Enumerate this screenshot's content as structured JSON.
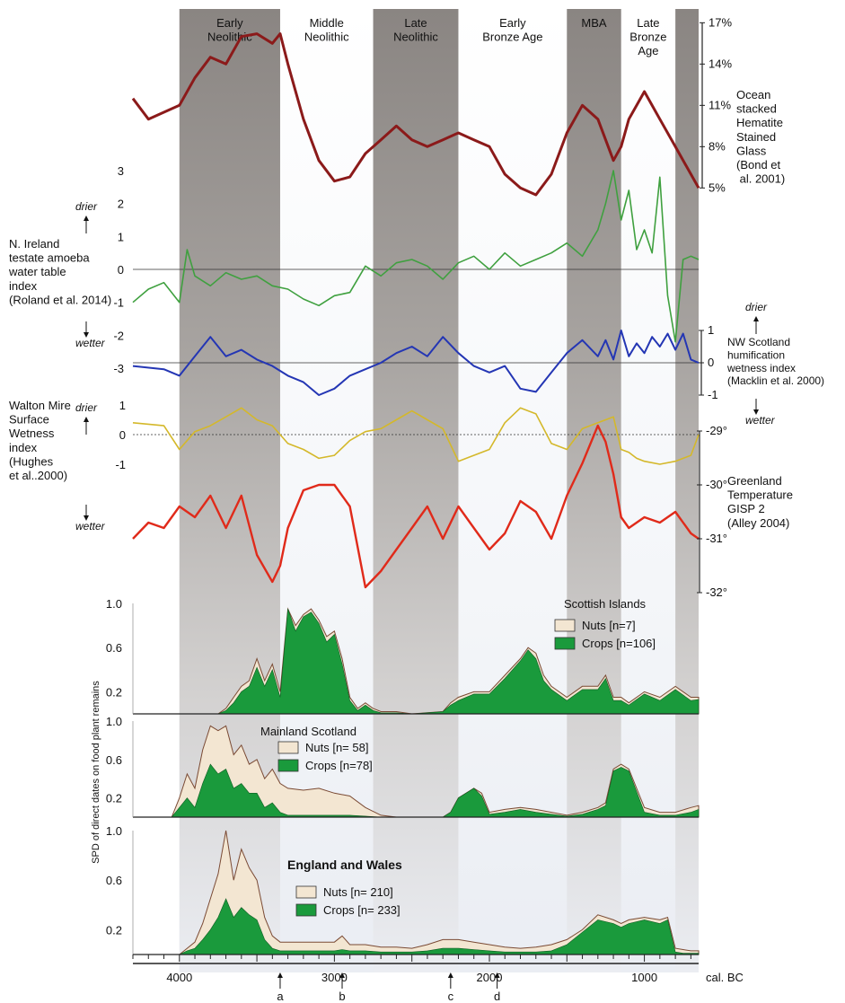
{
  "periods": [
    {
      "label": "Early\nNeolithic",
      "from": 4000,
      "to": 3350,
      "shaded": true
    },
    {
      "label": "Middle\nNeolithic",
      "from": 3350,
      "to": 2750,
      "shaded": false
    },
    {
      "label": "Late\nNeolithic",
      "from": 2750,
      "to": 2200,
      "shaded": true
    },
    {
      "label": "Early\nBronze Age",
      "from": 2200,
      "to": 1500,
      "shaded": false
    },
    {
      "label": "MBA",
      "from": 1500,
      "to": 1150,
      "shaded": true
    },
    {
      "label": "Late\nBronze\nAge",
      "from": 1150,
      "to": 800,
      "shaded": false
    },
    {
      "label": "",
      "from": 800,
      "to": 650,
      "shaded": true
    }
  ],
  "x_axis": {
    "unit": "cal. BC",
    "ticks": [
      4000,
      3000,
      2000,
      1000
    ],
    "markers": [
      {
        "label": "a",
        "x": 3350
      },
      {
        "label": "b",
        "x": 2950
      },
      {
        "label": "c",
        "x": 2250
      },
      {
        "label": "d",
        "x": 1950
      }
    ]
  },
  "colors": {
    "shade": "#8f8a86",
    "ocean": "#8b1a1a",
    "nireland": "#3fa03f",
    "nwscot": "#2436b4",
    "walton": "#d4b82a",
    "greenland": "#e02a1a",
    "crops": "#1a9a3c",
    "nuts": "#f3e6d2",
    "nuts_line": "#7a4a34"
  },
  "chart_data": [
    {
      "type": "line",
      "title": "",
      "series": [
        {
          "name": "Ocean stacked Hematite Stained Glass (Bond et al. 2001)",
          "x": [
            4300,
            4200,
            4100,
            4000,
            3900,
            3800,
            3700,
            3600,
            3500,
            3400,
            3350,
            3300,
            3200,
            3100,
            3000,
            2900,
            2800,
            2700,
            2600,
            2500,
            2400,
            2300,
            2200,
            2100,
            2000,
            1900,
            1800,
            1700,
            1600,
            1500,
            1400,
            1300,
            1200,
            1150,
            1100,
            1000,
            900,
            800,
            700,
            650
          ],
          "y": [
            11.5,
            10,
            10.5,
            11,
            13,
            14.5,
            14,
            16,
            16.2,
            15.5,
            16.2,
            14,
            10,
            7,
            5.5,
            5.8,
            7.5,
            8.5,
            9.5,
            8.5,
            8,
            8.5,
            9,
            8.5,
            8,
            6,
            5,
            4.5,
            6,
            9,
            11,
            10,
            7,
            8,
            10,
            12,
            10,
            8,
            6,
            5
          ]
        }
      ],
      "y_ticks": [
        "17%",
        "14%",
        "11%",
        "8%",
        "5%"
      ],
      "label": "Ocean\nstacked\nHematite\nStained\nGlass\n(Bond et\n al. 2001)"
    },
    {
      "type": "line",
      "series": [
        {
          "name": "N. Ireland testate amoeba water table index (Roland et al. 2014)",
          "x": [
            4300,
            4200,
            4100,
            4000,
            3950,
            3900,
            3800,
            3700,
            3600,
            3500,
            3400,
            3300,
            3200,
            3100,
            3000,
            2900,
            2800,
            2700,
            2600,
            2500,
            2400,
            2300,
            2200,
            2100,
            2000,
            1900,
            1800,
            1700,
            1600,
            1500,
            1400,
            1300,
            1250,
            1200,
            1150,
            1100,
            1050,
            1000,
            950,
            900,
            850,
            800,
            750,
            700,
            650
          ],
          "y": [
            -1,
            -0.6,
            -0.4,
            -1,
            0.6,
            -0.2,
            -0.5,
            -0.1,
            -0.3,
            -0.2,
            -0.5,
            -0.6,
            -0.9,
            -1.1,
            -0.8,
            -0.7,
            0.1,
            -0.2,
            0.2,
            0.3,
            0.1,
            -0.3,
            0.2,
            0.4,
            0,
            0.5,
            0.1,
            0.3,
            0.5,
            0.8,
            0.4,
            1.2,
            2,
            3,
            1.5,
            2.4,
            0.6,
            1.2,
            0.5,
            2.8,
            -0.8,
            -2.2,
            0.3,
            0.4,
            0.3
          ]
        }
      ],
      "y_ticks": [
        "3",
        "2",
        "1",
        "0",
        "-1",
        "-2",
        "-3"
      ],
      "label": "N. Ireland\ntestate amoeba\nwater table\nindex\n(Roland et al. 2014)"
    },
    {
      "type": "line",
      "series": [
        {
          "name": "NW Scotland humification wetness index (Macklin et al. 2000)",
          "x": [
            4300,
            4100,
            4000,
            3900,
            3800,
            3700,
            3600,
            3500,
            3400,
            3300,
            3200,
            3100,
            3000,
            2900,
            2800,
            2700,
            2600,
            2500,
            2400,
            2300,
            2200,
            2100,
            2000,
            1900,
            1800,
            1700,
            1600,
            1500,
            1400,
            1300,
            1250,
            1200,
            1150,
            1100,
            1050,
            1000,
            950,
            900,
            850,
            800,
            750,
            700,
            650
          ],
          "y": [
            -0.1,
            -0.2,
            -0.4,
            0.2,
            0.8,
            0.2,
            0.4,
            0.1,
            -0.1,
            -0.4,
            -0.6,
            -1,
            -0.8,
            -0.4,
            -0.2,
            0,
            0.3,
            0.5,
            0.2,
            0.8,
            0.3,
            -0.1,
            -0.3,
            -0.1,
            -0.8,
            -0.9,
            -0.3,
            0.3,
            0.7,
            0.2,
            0.7,
            0.1,
            1,
            0.2,
            0.6,
            0.3,
            0.8,
            0.5,
            0.9,
            0.4,
            0.9,
            0.1,
            0
          ]
        }
      ],
      "y_ticks": [
        "1",
        "0",
        "-1"
      ],
      "label": "NW Scotland\nhumification\nwetness index\n(Macklin et al. 2000)"
    },
    {
      "type": "line",
      "series": [
        {
          "name": "Walton Mire Surface Wetness index (Hughes et al. 2000)",
          "x": [
            4300,
            4100,
            4000,
            3900,
            3800,
            3700,
            3600,
            3500,
            3400,
            3300,
            3200,
            3100,
            3000,
            2900,
            2800,
            2700,
            2600,
            2500,
            2400,
            2300,
            2200,
            2100,
            2000,
            1900,
            1800,
            1700,
            1600,
            1500,
            1400,
            1300,
            1200,
            1150,
            1100,
            1050,
            1000,
            900,
            800,
            700,
            650
          ],
          "y": [
            0.4,
            0.3,
            -0.5,
            0.1,
            0.3,
            0.6,
            0.9,
            0.5,
            0.3,
            -0.3,
            -0.5,
            -0.8,
            -0.7,
            -0.2,
            0.1,
            0.2,
            0.5,
            0.8,
            0.5,
            0.2,
            -0.9,
            -0.7,
            -0.5,
            0.4,
            0.9,
            0.7,
            -0.3,
            -0.5,
            0.2,
            0.4,
            0.6,
            -0.5,
            -0.6,
            -0.8,
            -0.9,
            -1,
            -0.9,
            -0.7,
            0
          ]
        }
      ],
      "y_ticks": [
        "1",
        "0",
        "-1"
      ],
      "label": "Walton Mire\nSurface\nWetness\nindex\n(Hughes\net al..2000)"
    },
    {
      "type": "line",
      "series": [
        {
          "name": "Greenland Temperature GISP 2 (Alley 2004)",
          "x": [
            4300,
            4200,
            4100,
            4000,
            3900,
            3800,
            3700,
            3600,
            3500,
            3400,
            3350,
            3300,
            3200,
            3100,
            3000,
            2900,
            2800,
            2700,
            2600,
            2500,
            2400,
            2300,
            2200,
            2100,
            2000,
            1900,
            1800,
            1700,
            1600,
            1500,
            1400,
            1300,
            1250,
            1200,
            1150,
            1100,
            1000,
            900,
            800,
            700,
            650
          ],
          "y": [
            -31,
            -30.7,
            -30.8,
            -30.4,
            -30.6,
            -30.2,
            -30.8,
            -30.2,
            -31.3,
            -31.8,
            -31.5,
            -30.8,
            -30.1,
            -30,
            -30,
            -30.4,
            -31.9,
            -31.6,
            -31.2,
            -30.8,
            -30.4,
            -31,
            -30.4,
            -30.8,
            -31.2,
            -30.9,
            -30.3,
            -30.5,
            -31,
            -30.2,
            -29.6,
            -28.9,
            -29.2,
            -29.8,
            -30.6,
            -30.8,
            -30.6,
            -30.7,
            -30.5,
            -30.9,
            -31
          ]
        }
      ],
      "y_ticks": [
        "-29°",
        "-30°",
        "-31°",
        "-32°"
      ],
      "label": "Greenland\nTemperature\nGISP 2\n(Alley 2004)"
    },
    {
      "type": "area",
      "title": "Scottish Islands",
      "ylabel": "SPD of direct dates on food plant remains",
      "y_ticks": [
        "1.0",
        "0.6",
        "0.2"
      ],
      "x": [
        4300,
        3900,
        3800,
        3750,
        3700,
        3650,
        3600,
        3550,
        3500,
        3450,
        3400,
        3350,
        3300,
        3250,
        3200,
        3150,
        3100,
        3050,
        3000,
        2950,
        2900,
        2850,
        2800,
        2750,
        2700,
        2600,
        2500,
        2400,
        2300,
        2250,
        2200,
        2100,
        2000,
        1900,
        1800,
        1750,
        1700,
        1650,
        1600,
        1500,
        1400,
        1300,
        1250,
        1200,
        1150,
        1100,
        1000,
        900,
        800,
        700,
        650
      ],
      "series": [
        {
          "name": "Nuts [n=7]",
          "values": [
            0,
            0,
            0,
            0,
            0.05,
            0.15,
            0.25,
            0.3,
            0.5,
            0.3,
            0.45,
            0.2,
            0.95,
            0.8,
            0.9,
            0.95,
            0.85,
            0.7,
            0.75,
            0.5,
            0.15,
            0.05,
            0.1,
            0.05,
            0.02,
            0.02,
            0,
            0.01,
            0.02,
            0.1,
            0.15,
            0.2,
            0.2,
            0.35,
            0.5,
            0.6,
            0.55,
            0.35,
            0.25,
            0.15,
            0.25,
            0.25,
            0.35,
            0.15,
            0.15,
            0.1,
            0.2,
            0.15,
            0.25,
            0.15,
            0.15
          ]
        },
        {
          "name": "Crops [n=106]",
          "values": [
            0,
            0,
            0,
            0,
            0.03,
            0.1,
            0.2,
            0.25,
            0.42,
            0.25,
            0.4,
            0.15,
            0.95,
            0.75,
            0.88,
            0.92,
            0.82,
            0.65,
            0.72,
            0.45,
            0.12,
            0.03,
            0.08,
            0.03,
            0.01,
            0.01,
            0,
            0.01,
            0.02,
            0.08,
            0.12,
            0.18,
            0.18,
            0.32,
            0.48,
            0.58,
            0.5,
            0.3,
            0.22,
            0.12,
            0.22,
            0.22,
            0.32,
            0.12,
            0.12,
            0.08,
            0.18,
            0.12,
            0.22,
            0.12,
            0.13
          ]
        }
      ]
    },
    {
      "type": "area",
      "title": "Mainland Scotland",
      "y_ticks": [
        "1.0",
        "0.6",
        "0.2"
      ],
      "x": [
        4300,
        4050,
        4000,
        3950,
        3900,
        3850,
        3800,
        3750,
        3700,
        3650,
        3600,
        3550,
        3500,
        3450,
        3400,
        3350,
        3300,
        3200,
        3100,
        3000,
        2900,
        2800,
        2700,
        2600,
        2500,
        2400,
        2300,
        2250,
        2200,
        2100,
        2050,
        2000,
        1900,
        1800,
        1700,
        1600,
        1500,
        1400,
        1300,
        1250,
        1200,
        1150,
        1100,
        1000,
        900,
        800,
        700,
        650
      ],
      "series": [
        {
          "name": "Nuts [n= 58]",
          "values": [
            0,
            0,
            0.2,
            0.45,
            0.3,
            0.7,
            0.95,
            0.9,
            0.95,
            0.65,
            0.75,
            0.55,
            0.6,
            0.4,
            0.5,
            0.35,
            0.3,
            0.28,
            0.3,
            0.25,
            0.22,
            0.1,
            0.02,
            0,
            0,
            0,
            0,
            0.05,
            0.2,
            0.3,
            0.25,
            0.05,
            0.08,
            0.1,
            0.08,
            0.05,
            0.02,
            0.05,
            0.1,
            0.15,
            0.5,
            0.55,
            0.5,
            0.1,
            0.05,
            0.05,
            0.1,
            0.12
          ]
        },
        {
          "name": "Crops [n=78]",
          "values": [
            0,
            0,
            0.1,
            0.2,
            0.1,
            0.35,
            0.55,
            0.45,
            0.5,
            0.3,
            0.35,
            0.25,
            0.25,
            0.1,
            0.15,
            0.05,
            0.02,
            0.02,
            0.02,
            0.02,
            0.02,
            0.01,
            0,
            0,
            0,
            0,
            0,
            0.05,
            0.2,
            0.3,
            0.22,
            0.03,
            0.05,
            0.08,
            0.05,
            0.03,
            0.01,
            0.03,
            0.08,
            0.12,
            0.48,
            0.52,
            0.48,
            0.05,
            0.02,
            0.02,
            0.05,
            0.08
          ]
        }
      ]
    },
    {
      "type": "area",
      "title": "England and Wales",
      "y_ticks": [
        "1.0",
        "0.6",
        "0.2"
      ],
      "x": [
        4300,
        4000,
        3950,
        3900,
        3850,
        3800,
        3750,
        3700,
        3650,
        3600,
        3550,
        3500,
        3450,
        3400,
        3350,
        3300,
        3200,
        3100,
        3000,
        2950,
        2900,
        2800,
        2700,
        2600,
        2500,
        2400,
        2300,
        2200,
        2100,
        2000,
        1900,
        1800,
        1700,
        1600,
        1500,
        1400,
        1300,
        1200,
        1150,
        1100,
        1000,
        900,
        850,
        800,
        750,
        700,
        650
      ],
      "series": [
        {
          "name": "Nuts  [n= 210]",
          "values": [
            0,
            0,
            0.05,
            0.1,
            0.25,
            0.45,
            0.65,
            1.0,
            0.6,
            0.85,
            0.7,
            0.6,
            0.3,
            0.15,
            0.1,
            0.1,
            0.1,
            0.1,
            0.1,
            0.15,
            0.08,
            0.08,
            0.06,
            0.06,
            0.05,
            0.08,
            0.12,
            0.12,
            0.1,
            0.08,
            0.06,
            0.05,
            0.06,
            0.08,
            0.12,
            0.2,
            0.32,
            0.28,
            0.25,
            0.28,
            0.3,
            0.28,
            0.3,
            0.05,
            0.04,
            0.03,
            0.03
          ]
        },
        {
          "name": "Crops [n= 233]",
          "values": [
            0,
            0,
            0.03,
            0.05,
            0.12,
            0.2,
            0.3,
            0.45,
            0.3,
            0.38,
            0.32,
            0.28,
            0.12,
            0.05,
            0.03,
            0.03,
            0.03,
            0.03,
            0.03,
            0.04,
            0.03,
            0.03,
            0.02,
            0.02,
            0.02,
            0.03,
            0.05,
            0.05,
            0.04,
            0.03,
            0.02,
            0.02,
            0.02,
            0.03,
            0.08,
            0.18,
            0.28,
            0.25,
            0.22,
            0.25,
            0.28,
            0.25,
            0.28,
            0.02,
            0.01,
            0.01,
            0.01
          ]
        }
      ]
    }
  ]
}
